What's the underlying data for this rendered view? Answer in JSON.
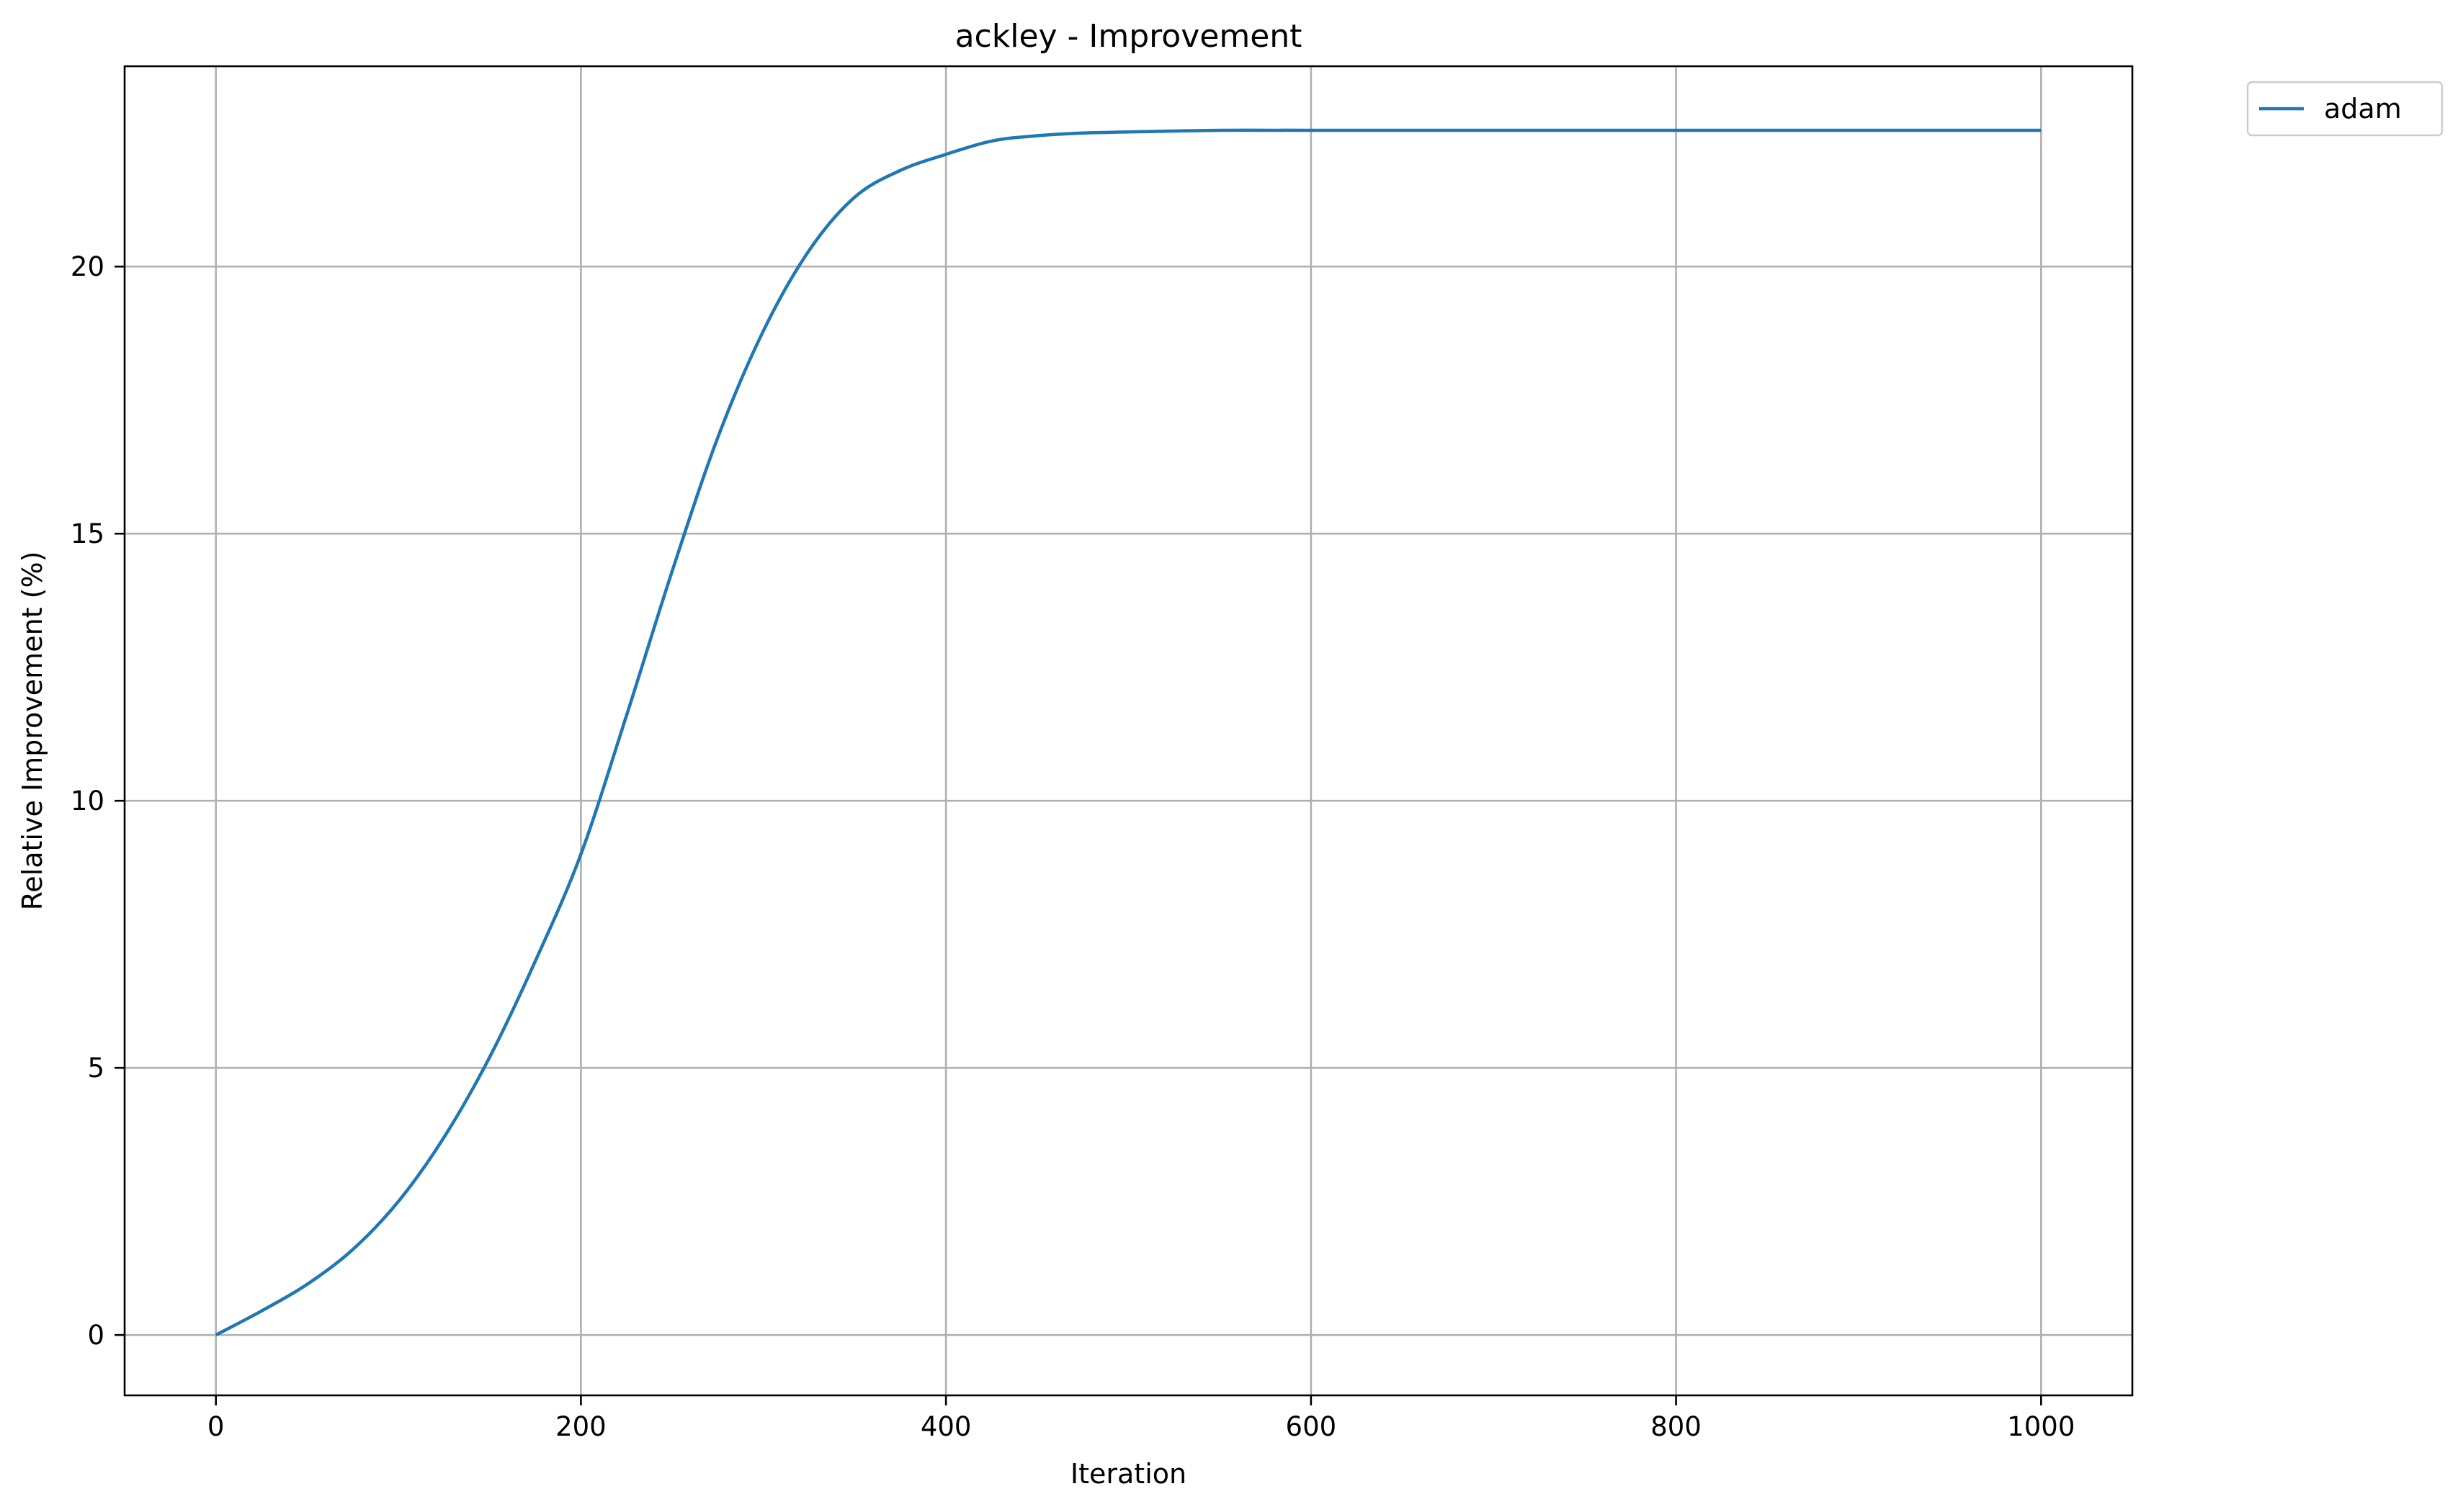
{
  "chart_data": {
    "type": "line",
    "title": "ackley - Improvement",
    "xlabel": "Iteration",
    "ylabel": "Relative Improvement (%)",
    "xlim": [
      -50,
      1050
    ],
    "ylim": [
      -1.13,
      23.75
    ],
    "xticks": [
      0,
      200,
      400,
      600,
      800,
      1000
    ],
    "yticks": [
      0,
      5,
      10,
      15,
      20
    ],
    "grid": true,
    "legend_position": "outside-top-right",
    "series": [
      {
        "name": "adam",
        "color": "#1f77b4",
        "x": [
          0,
          25,
          50,
          75,
          100,
          125,
          150,
          175,
          200,
          225,
          250,
          275,
          300,
          325,
          350,
          375,
          400,
          425,
          450,
          475,
          500,
          550,
          600,
          700,
          800,
          900,
          1000
        ],
        "y": [
          0,
          0.45,
          0.95,
          1.6,
          2.5,
          3.7,
          5.2,
          7.0,
          9.0,
          11.6,
          14.3,
          16.8,
          18.8,
          20.3,
          21.3,
          21.8,
          22.1,
          22.35,
          22.45,
          22.5,
          22.52,
          22.55,
          22.55,
          22.55,
          22.55,
          22.55,
          22.55
        ]
      }
    ]
  }
}
